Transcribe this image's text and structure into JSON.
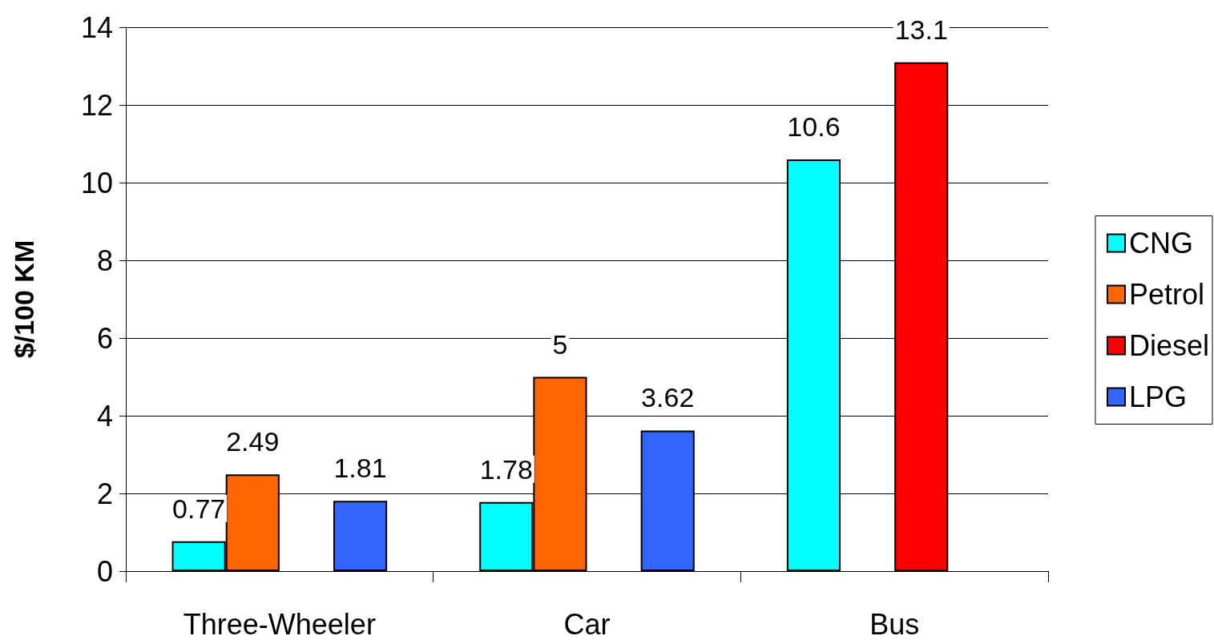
{
  "chart_data": {
    "type": "bar",
    "ylabel": "$/100 KM",
    "categories": [
      "Three-Wheeler",
      "Car",
      "Bus"
    ],
    "series": [
      {
        "name": "CNG",
        "color": "#00ffff",
        "values": [
          0.77,
          1.78,
          10.6
        ]
      },
      {
        "name": "Petrol",
        "color": "#ff6600",
        "values": [
          2.49,
          5,
          null
        ]
      },
      {
        "name": "Diesel",
        "color": "#ff0000",
        "values": [
          null,
          null,
          13.1
        ]
      },
      {
        "name": "LPG",
        "color": "#3366ff",
        "values": [
          1.81,
          3.62,
          null
        ]
      }
    ],
    "ylim": [
      0,
      14
    ],
    "yticks": [
      0,
      2,
      4,
      6,
      8,
      10,
      12,
      14
    ],
    "grid": "y",
    "legend": "right",
    "data_labels": true
  }
}
